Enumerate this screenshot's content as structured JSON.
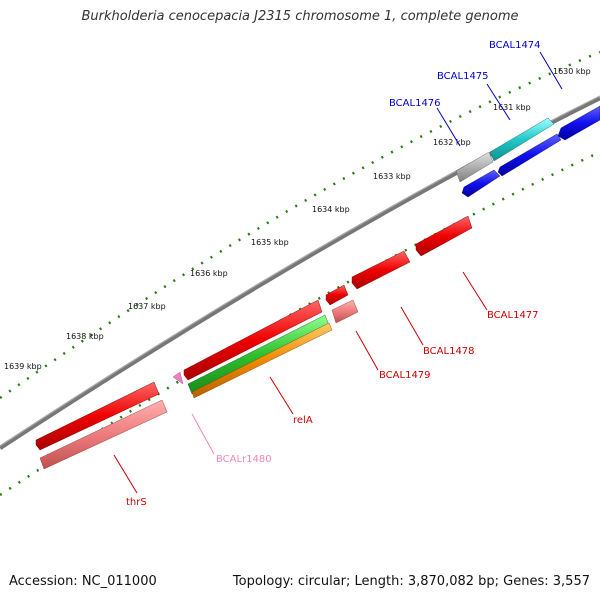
{
  "title": "Burkholderia cenocepacia J2315 chromosome 1, complete genome",
  "footer": {
    "accession": "Accession: NC_011000",
    "summary": "Topology: circular; Length: 3,870,082 bp; Genes: 3,557"
  },
  "ticks": [
    "1630 kbp",
    "1631 kbp",
    "1632 kbp",
    "1633 kbp",
    "1634 kbp",
    "1635 kbp",
    "1636 kbp",
    "1637 kbp",
    "1638 kbp",
    "1639 kbp"
  ],
  "genes": [
    {
      "label": "BCAL1474",
      "color": "#0000cc"
    },
    {
      "label": "BCAL1475",
      "color": "#0000cc"
    },
    {
      "label": "BCAL1476",
      "color": "#0000cc"
    },
    {
      "label": "BCAL1477",
      "color": "#cc0000"
    },
    {
      "label": "BCAL1478",
      "color": "#cc0000"
    },
    {
      "label": "BCAL1479",
      "color": "#cc0000"
    },
    {
      "label": "relA",
      "color": "#cc0000"
    },
    {
      "label": "BCALr1480",
      "color": "#ee88bb"
    },
    {
      "label": "thrS",
      "color": "#cc0000"
    }
  ],
  "colors": {
    "backbone": "#777777",
    "tick": "#2a7a10",
    "cds_forward": "#1010ee",
    "cds_reverse": "#ee0000",
    "cds_forward_light": "#20c8c8",
    "pseudo": "#b0b0b0",
    "rna": "#f08a8a",
    "gc_green": "#2ec02e",
    "gc_orange": "#f08a00"
  }
}
